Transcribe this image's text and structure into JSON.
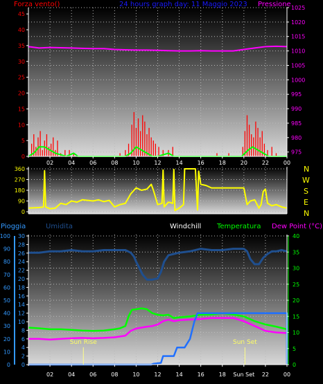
{
  "header": {
    "wind_label": "Forza vento()",
    "title": "24 hours graph day: 11 Maggio 2023",
    "pressure_label": "Pressione"
  },
  "bottom_header": {
    "rain_label": "Pioggia",
    "humidity_label": "Umidita",
    "windchill_label": "Windchill",
    "temp_label": "Temperatura",
    "dewpoint_label": "Dew Point (°C)"
  },
  "annotations": {
    "sunrise": "Sun Rise",
    "sunset": "Sun Set"
  },
  "direction_labels": [
    "N",
    "W",
    "S",
    "E",
    "N"
  ],
  "colors": {
    "wind": "#ff0000",
    "gust": "#00ff00",
    "pressure": "#ff00ff",
    "direction": "#ffff00",
    "humidity": "#1f4f8f",
    "rain": "#1f6fff",
    "temperature": "#00ff00",
    "dewpoint": "#ff00ff",
    "left_axis_rain": "#3399ff",
    "right_axis_temp": "#00ff00"
  },
  "chart_data": [
    {
      "type": "bar",
      "title": "24 hours graph day: 11 Maggio 2023",
      "x_ticks": [
        "02",
        "04",
        "06",
        "08",
        "10",
        "12",
        "14",
        "16",
        "18",
        "20",
        "22",
        "00"
      ],
      "y_left_ticks": [
        "0",
        "5",
        "10",
        "15",
        "20",
        "25",
        "30",
        "35",
        "40",
        "45"
      ],
      "y_left_range": [
        0,
        47
      ],
      "y_right_ticks": [
        "975",
        "980",
        "985",
        "990",
        "995",
        "1000",
        "1005",
        "1010",
        "1015",
        "1020",
        "1025"
      ],
      "y_right_range": [
        973.5,
        1025
      ],
      "wind": [
        [
          0.3,
          4
        ],
        [
          0.5,
          7
        ],
        [
          0.7,
          3
        ],
        [
          0.9,
          6
        ],
        [
          1.1,
          8
        ],
        [
          1.3,
          2
        ],
        [
          1.5,
          5
        ],
        [
          1.7,
          7
        ],
        [
          1.9,
          3
        ],
        [
          2.1,
          4
        ],
        [
          2.3,
          6
        ],
        [
          2.5,
          2
        ],
        [
          2.7,
          5
        ],
        [
          3.0,
          1
        ],
        [
          3.4,
          2
        ],
        [
          3.8,
          2
        ],
        [
          4.2,
          1
        ],
        [
          8.5,
          1
        ],
        [
          9.0,
          2
        ],
        [
          9.3,
          4
        ],
        [
          9.6,
          10
        ],
        [
          9.8,
          14
        ],
        [
          10.0,
          9
        ],
        [
          10.2,
          12
        ],
        [
          10.4,
          8
        ],
        [
          10.6,
          13
        ],
        [
          10.8,
          11
        ],
        [
          11.0,
          7
        ],
        [
          11.2,
          9
        ],
        [
          11.4,
          6
        ],
        [
          11.6,
          5
        ],
        [
          11.8,
          4
        ],
        [
          12.1,
          3
        ],
        [
          12.5,
          2
        ],
        [
          13.0,
          2
        ],
        [
          13.4,
          3
        ],
        [
          17.5,
          1
        ],
        [
          18.6,
          1
        ],
        [
          19.9,
          3
        ],
        [
          20.1,
          8
        ],
        [
          20.3,
          13
        ],
        [
          20.5,
          10
        ],
        [
          20.7,
          7
        ],
        [
          20.9,
          6
        ],
        [
          21.1,
          11
        ],
        [
          21.3,
          9
        ],
        [
          21.5,
          6
        ],
        [
          21.7,
          8
        ],
        [
          21.9,
          4
        ],
        [
          22.2,
          2
        ],
        [
          22.6,
          3
        ],
        [
          23.0,
          1
        ]
      ],
      "gust": [
        [
          0,
          0
        ],
        [
          0.5,
          1
        ],
        [
          1.0,
          3
        ],
        [
          1.5,
          3
        ],
        [
          2.0,
          2
        ],
        [
          2.5,
          1
        ],
        [
          3.0,
          0.5
        ],
        [
          3.5,
          0
        ],
        [
          4.2,
          1
        ],
        [
          4.6,
          0
        ],
        [
          9.0,
          0
        ],
        [
          9.5,
          1
        ],
        [
          10.0,
          3
        ],
        [
          10.5,
          2
        ],
        [
          11.0,
          1
        ],
        [
          11.5,
          0
        ],
        [
          12.0,
          0
        ],
        [
          13.0,
          1
        ],
        [
          13.5,
          0
        ],
        [
          19.8,
          0
        ],
        [
          20.4,
          2
        ],
        [
          20.8,
          3
        ],
        [
          21.3,
          2
        ],
        [
          21.8,
          1
        ],
        [
          22.3,
          0
        ],
        [
          24,
          0
        ]
      ],
      "pressure": [
        [
          0,
          1011.5
        ],
        [
          1,
          1011.0
        ],
        [
          2,
          1011.2
        ],
        [
          3,
          1011.1
        ],
        [
          4,
          1011.0
        ],
        [
          5,
          1010.9
        ],
        [
          6,
          1010.8
        ],
        [
          7,
          1010.8
        ],
        [
          8,
          1010.5
        ],
        [
          9,
          1010.4
        ],
        [
          10,
          1010.3
        ],
        [
          11,
          1010.3
        ],
        [
          12,
          1010.2
        ],
        [
          13,
          1010.1
        ],
        [
          14,
          1010.0
        ],
        [
          15,
          1010.0
        ],
        [
          16,
          1010.1
        ],
        [
          17,
          1010.0
        ],
        [
          18,
          1010.0
        ],
        [
          19,
          1010.0
        ],
        [
          20,
          1010.5
        ],
        [
          21,
          1011.0
        ],
        [
          22,
          1011.5
        ],
        [
          23,
          1011.6
        ],
        [
          24,
          1011.5
        ]
      ]
    },
    {
      "type": "line",
      "x_ticks": [
        "02",
        "04",
        "06",
        "08",
        "10",
        "12",
        "14",
        "16",
        "18",
        "20",
        "22",
        "00"
      ],
      "y_ticks": [
        "0",
        "90",
        "180",
        "270",
        "360"
      ],
      "y_range": [
        0,
        360
      ],
      "direction": [
        [
          0,
          30
        ],
        [
          1,
          35
        ],
        [
          1.4,
          40
        ],
        [
          1.5,
          345
        ],
        [
          1.6,
          40
        ],
        [
          2.0,
          25
        ],
        [
          2.5,
          30
        ],
        [
          3.0,
          70
        ],
        [
          3.5,
          60
        ],
        [
          4.0,
          90
        ],
        [
          4.5,
          80
        ],
        [
          5.0,
          100
        ],
        [
          5.5,
          95
        ],
        [
          6.0,
          90
        ],
        [
          6.5,
          100
        ],
        [
          7.0,
          85
        ],
        [
          7.5,
          95
        ],
        [
          8.0,
          40
        ],
        [
          8.5,
          60
        ],
        [
          9.0,
          70
        ],
        [
          9.5,
          150
        ],
        [
          10.0,
          200
        ],
        [
          10.5,
          180
        ],
        [
          11.0,
          190
        ],
        [
          11.4,
          230
        ],
        [
          11.6,
          180
        ],
        [
          12.0,
          60
        ],
        [
          12.4,
          70
        ],
        [
          12.5,
          350
        ],
        [
          12.6,
          40
        ],
        [
          13.0,
          80
        ],
        [
          13.4,
          70
        ],
        [
          13.5,
          355
        ],
        [
          13.6,
          10
        ],
        [
          14.0,
          30
        ],
        [
          14.4,
          60
        ],
        [
          14.5,
          360
        ],
        [
          15.0,
          360
        ],
        [
          15.5,
          360
        ],
        [
          15.7,
          15
        ],
        [
          15.8,
          340
        ],
        [
          16.0,
          230
        ],
        [
          16.5,
          220
        ],
        [
          17.0,
          200
        ],
        [
          18.0,
          200
        ],
        [
          19.0,
          200
        ],
        [
          20.0,
          200
        ],
        [
          20.3,
          60
        ],
        [
          20.6,
          90
        ],
        [
          21.0,
          100
        ],
        [
          21.4,
          30
        ],
        [
          21.6,
          60
        ],
        [
          21.8,
          170
        ],
        [
          22.0,
          190
        ],
        [
          22.2,
          70
        ],
        [
          22.6,
          50
        ],
        [
          23.0,
          60
        ],
        [
          23.5,
          40
        ],
        [
          24,
          30
        ]
      ]
    },
    {
      "type": "line",
      "x_ticks": [
        "02",
        "04",
        "06",
        "08",
        "10",
        "12",
        "14",
        "16",
        "18",
        "Sun Set",
        "22",
        "00"
      ],
      "y_left_ticks": [
        "0",
        "10",
        "20",
        "30",
        "40",
        "50",
        "60",
        "70",
        "80",
        "90",
        "100"
      ],
      "y_left_range": [
        0,
        100
      ],
      "y_rain_ticks": [
        "0",
        "2",
        "4",
        "6",
        "8",
        "10",
        "12",
        "14",
        "16",
        "18",
        "20",
        "22",
        "24",
        "26",
        "28",
        "30"
      ],
      "y_rain_range": [
        0,
        30
      ],
      "y_right_ticks": [
        "0",
        "5",
        "10",
        "15",
        "20",
        "25",
        "30",
        "35",
        "40"
      ],
      "y_right_range": [
        0,
        40
      ],
      "sunrise_hour": 5.1,
      "sunset_hour": 20.1,
      "humidity": [
        [
          0,
          87
        ],
        [
          1,
          87
        ],
        [
          2,
          88
        ],
        [
          3,
          88
        ],
        [
          4,
          89
        ],
        [
          5,
          88
        ],
        [
          6,
          88
        ],
        [
          7,
          89
        ],
        [
          8,
          89
        ],
        [
          9,
          89
        ],
        [
          9.5,
          87
        ],
        [
          9.8,
          84
        ],
        [
          10.0,
          80
        ],
        [
          10.3,
          75
        ],
        [
          10.6,
          70
        ],
        [
          11.0,
          66
        ],
        [
          11.5,
          66
        ],
        [
          12.0,
          67
        ],
        [
          12.3,
          72
        ],
        [
          12.6,
          80
        ],
        [
          13.0,
          85
        ],
        [
          13.5,
          86
        ],
        [
          14.0,
          87
        ],
        [
          15.0,
          88
        ],
        [
          16.0,
          90
        ],
        [
          17.0,
          89
        ],
        [
          18.0,
          89
        ],
        [
          19.0,
          90
        ],
        [
          20.0,
          90
        ],
        [
          20.3,
          88
        ],
        [
          20.6,
          82
        ],
        [
          21.0,
          78
        ],
        [
          21.4,
          78
        ],
        [
          21.8,
          83
        ],
        [
          22.2,
          86
        ],
        [
          22.6,
          88
        ],
        [
          23.0,
          88
        ],
        [
          23.5,
          89
        ],
        [
          24,
          88
        ]
      ],
      "rain": [
        [
          0,
          0
        ],
        [
          11.4,
          0
        ],
        [
          11.6,
          0.2
        ],
        [
          12.3,
          0.4
        ],
        [
          12.5,
          2
        ],
        [
          13.5,
          2
        ],
        [
          13.8,
          4
        ],
        [
          14.5,
          4
        ],
        [
          15.0,
          6
        ],
        [
          15.4,
          10
        ],
        [
          15.7,
          12
        ],
        [
          24,
          12
        ],
        [
          24,
          0
        ]
      ],
      "temperature": [
        [
          0,
          11.5
        ],
        [
          1,
          11.3
        ],
        [
          2,
          11.0
        ],
        [
          3,
          11.0
        ],
        [
          4,
          10.8
        ],
        [
          5,
          10.6
        ],
        [
          6,
          10.5
        ],
        [
          7,
          10.6
        ],
        [
          8,
          11.0
        ],
        [
          8.5,
          11.3
        ],
        [
          9,
          12.0
        ],
        [
          9.3,
          15.0
        ],
        [
          9.6,
          17.0
        ],
        [
          10.0,
          17.2
        ],
        [
          10.5,
          17.5
        ],
        [
          11.0,
          17.2
        ],
        [
          11.5,
          16.0
        ],
        [
          12.0,
          15.5
        ],
        [
          12.5,
          15.3
        ],
        [
          13.0,
          15.5
        ],
        [
          13.5,
          14.5
        ],
        [
          14.0,
          14.7
        ],
        [
          15.0,
          15.0
        ],
        [
          16.0,
          15.5
        ],
        [
          17.0,
          15.6
        ],
        [
          18.0,
          16.0
        ],
        [
          19.0,
          15.6
        ],
        [
          20.0,
          15.0
        ],
        [
          21.0,
          13.5
        ],
        [
          22.0,
          12.5
        ],
        [
          23.0,
          11.8
        ],
        [
          24,
          11.0
        ]
      ],
      "dewpoint": [
        [
          0,
          8.0
        ],
        [
          1,
          8.0
        ],
        [
          2,
          7.8
        ],
        [
          3,
          8.0
        ],
        [
          4,
          8.2
        ],
        [
          5,
          8.3
        ],
        [
          6,
          8.2
        ],
        [
          7,
          8.3
        ],
        [
          8,
          8.5
        ],
        [
          9,
          9.0
        ],
        [
          9.5,
          10.5
        ],
        [
          10.0,
          11.2
        ],
        [
          10.5,
          11.5
        ],
        [
          11.0,
          11.8
        ],
        [
          11.5,
          12.0
        ],
        [
          12.0,
          12.5
        ],
        [
          12.5,
          13.5
        ],
        [
          13.0,
          14.0
        ],
        [
          13.5,
          13.5
        ],
        [
          14.0,
          13.8
        ],
        [
          15.0,
          14.0
        ],
        [
          16.0,
          14.2
        ],
        [
          17.0,
          14.5
        ],
        [
          18.0,
          14.5
        ],
        [
          19.0,
          14.5
        ],
        [
          20.0,
          13.5
        ],
        [
          21.0,
          12.0
        ],
        [
          22.0,
          10.5
        ],
        [
          23.0,
          10.0
        ],
        [
          24,
          9.8
        ]
      ]
    }
  ]
}
